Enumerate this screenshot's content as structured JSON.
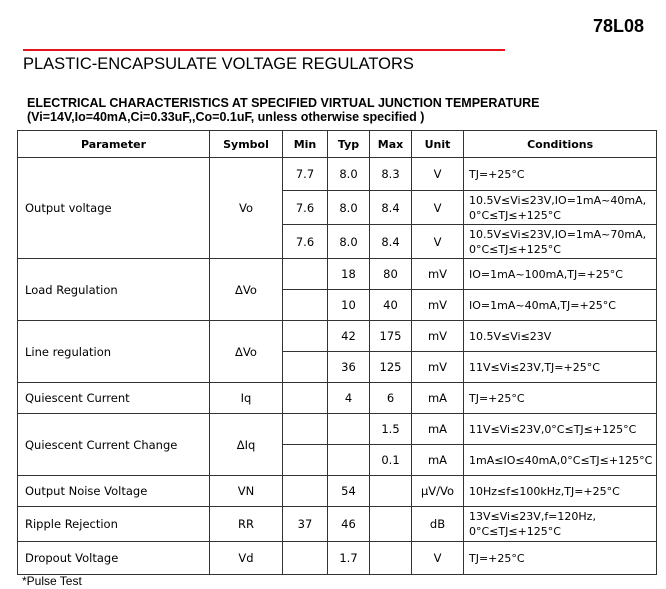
{
  "part": "78L08",
  "accent": "#e8141b",
  "title": "PLASTIC-ENCAPSULATE VOLTAGE REGULATORS",
  "heading1": "ELECTRICAL CHARACTERISTICS AT SPECIFIED VIRTUAL JUNCTION TEMPERATURE",
  "heading2": "(Vi=14V,Io=40mA,Ci=0.33uF,,Co=0.1uF, unless otherwise specified )",
  "columns": [
    "Parameter",
    "Symbol",
    "Min",
    "Typ",
    "Max",
    "Unit",
    "Conditions"
  ],
  "rows": [
    {
      "param": "Output voltage",
      "symbol": "Vo",
      "sub": [
        {
          "min": "7.7",
          "typ": "8.0",
          "max": "8.3",
          "unit": "V",
          "cond": "TJ=+25°C"
        },
        {
          "min": "7.6",
          "typ": "8.0",
          "max": "8.4",
          "unit": "V",
          "cond": "10.5V≤Vi≤23V,IO=1mA~40mA, 0°C≤TJ≤+125°C"
        },
        {
          "min": "7.6",
          "typ": "8.0",
          "max": "8.4",
          "unit": "V",
          "cond": "10.5V≤Vi≤23V,IO=1mA~70mA, 0°C≤TJ≤+125°C"
        }
      ]
    },
    {
      "param": "Load Regulation",
      "symbol": "ΔVo",
      "sub": [
        {
          "min": "",
          "typ": "18",
          "max": "80",
          "unit": "mV",
          "cond": "IO=1mA~100mA,TJ=+25°C"
        },
        {
          "min": "",
          "typ": "10",
          "max": "40",
          "unit": "mV",
          "cond": "IO=1mA~40mA,TJ=+25°C"
        }
      ]
    },
    {
      "param": "Line regulation",
      "symbol": "ΔVo",
      "sub": [
        {
          "min": "",
          "typ": "42",
          "max": "175",
          "unit": "mV",
          "cond": "10.5V≤Vi≤23V"
        },
        {
          "min": "",
          "typ": "36",
          "max": "125",
          "unit": "mV",
          "cond": "11V≤Vi≤23V,TJ=+25°C"
        }
      ]
    },
    {
      "param": "Quiescent Current",
      "symbol": "Iq",
      "sub": [
        {
          "min": "",
          "typ": "4",
          "max": "6",
          "unit": "mA",
          "cond": "TJ=+25°C"
        }
      ]
    },
    {
      "param": "Quiescent Current Change",
      "symbol": "ΔIq",
      "sub": [
        {
          "min": "",
          "typ": "",
          "max": "1.5",
          "unit": "mA",
          "cond": "11V≤Vi≤23V,0°C≤TJ≤+125°C"
        },
        {
          "min": "",
          "typ": "",
          "max": "0.1",
          "unit": "mA",
          "cond": "1mA≤IO≤40mA,0°C≤TJ≤+125°C"
        }
      ]
    },
    {
      "param": "Output Noise Voltage",
      "symbol": "VN",
      "sub": [
        {
          "min": "",
          "typ": "54",
          "max": "",
          "unit": "μV/Vo",
          "cond": "10Hz≤f≤100kHz,TJ=+25°C"
        }
      ]
    },
    {
      "param": "Ripple Rejection",
      "symbol": "RR",
      "sub": [
        {
          "min": "37",
          "typ": "46",
          "max": "",
          "unit": "dB",
          "cond": "13V≤Vi≤23V,f=120Hz, 0°C≤TJ≤+125°C"
        }
      ]
    },
    {
      "param": "Dropout Voltage",
      "symbol": "Vd",
      "sub": [
        {
          "min": "",
          "typ": "1.7",
          "max": "",
          "unit": "V",
          "cond": "TJ=+25°C"
        }
      ]
    }
  ],
  "footnote": "*Pulse Test"
}
